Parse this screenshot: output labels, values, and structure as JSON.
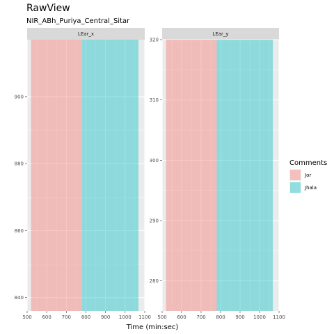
{
  "title": "RawView",
  "subtitle": "NIR_ABh_Puriya_Central_Sitar",
  "legend_title": "Comments",
  "colors": {
    "Jor": "#F8766D",
    "Jhala": "#00BFC4",
    "panel_bg": "#EBEBEB",
    "strip_bg": "#D9D9D9",
    "grid_major": "#FFFFFF"
  },
  "chart_data": {
    "type": "area",
    "xlabel": "Time (min:sec)",
    "ylabel": "",
    "grid": true,
    "legend_position": "right",
    "legend": [
      {
        "name": "Jor",
        "color": "#F8766D"
      },
      {
        "name": "Jhala",
        "color": "#00BFC4"
      }
    ],
    "facets": [
      {
        "label": "LEar_x",
        "xlim": [
          500,
          1100
        ],
        "ylim": [
          836,
          917
        ],
        "xticks": [
          500,
          600,
          700,
          800,
          900,
          1000,
          1100
        ],
        "yticks": [
          840,
          860,
          880,
          900
        ],
        "regions": [
          {
            "name": "Jor",
            "x_start": 520,
            "x_end": 780
          },
          {
            "name": "Jhala",
            "x_start": 780,
            "x_end": 1068
          }
        ]
      },
      {
        "label": "LEar_y",
        "xlim": [
          500,
          1100
        ],
        "ylim": [
          275,
          320
        ],
        "xticks": [
          500,
          600,
          700,
          800,
          900,
          1000,
          1100
        ],
        "yticks": [
          280,
          290,
          300,
          310,
          320
        ],
        "regions": [
          {
            "name": "Jor",
            "x_start": 520,
            "x_end": 780
          },
          {
            "name": "Jhala",
            "x_start": 780,
            "x_end": 1068
          }
        ]
      }
    ]
  }
}
